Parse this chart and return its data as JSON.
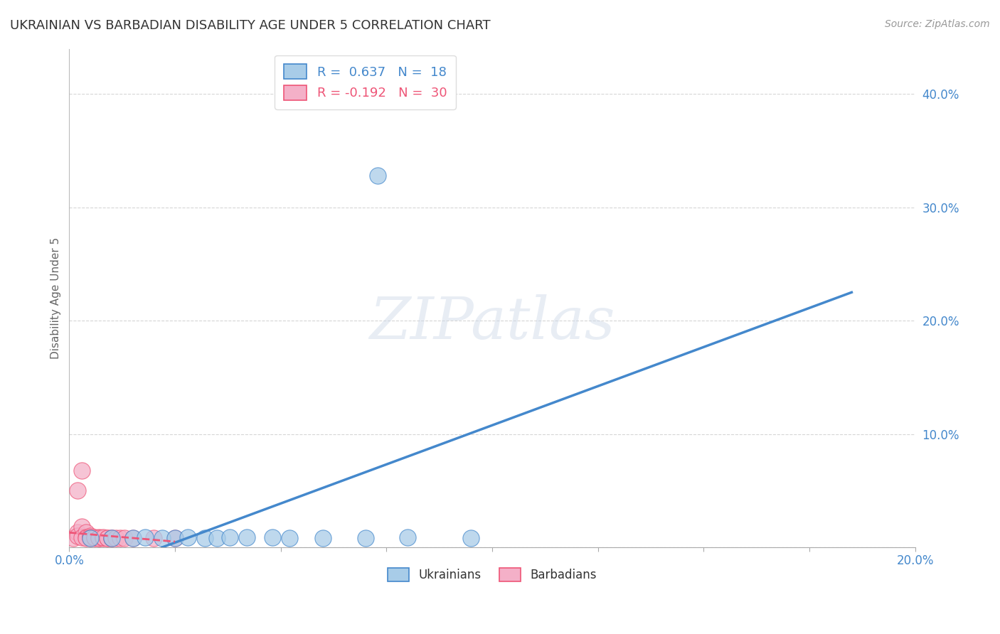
{
  "title": "UKRAINIAN VS BARBADIAN DISABILITY AGE UNDER 5 CORRELATION CHART",
  "source_text": "Source: ZipAtlas.com",
  "ylabel": "Disability Age Under 5",
  "xlabel": "",
  "xlim": [
    0.0,
    0.2
  ],
  "ylim": [
    0.0,
    0.44
  ],
  "background_color": "#ffffff",
  "watermark": "ZIPatlas",
  "legend_r_labels": [
    "R =  0.637   N =  18",
    "R = -0.192   N =  30"
  ],
  "legend_bottom_labels": [
    "Ukrainians",
    "Barbadians"
  ],
  "ukrainian_color": "#a8cce8",
  "barbadian_color": "#f4b0c8",
  "ukrainian_line_color": "#4488cc",
  "barbadian_line_color": "#ee5577",
  "grid_color": "#cccccc",
  "tick_label_color": "#4488cc",
  "ukrainian_points": [
    [
      0.005,
      0.008
    ],
    [
      0.01,
      0.008
    ],
    [
      0.015,
      0.008
    ],
    [
      0.018,
      0.009
    ],
    [
      0.022,
      0.008
    ],
    [
      0.025,
      0.008
    ],
    [
      0.028,
      0.009
    ],
    [
      0.032,
      0.008
    ],
    [
      0.035,
      0.008
    ],
    [
      0.038,
      0.009
    ],
    [
      0.042,
      0.009
    ],
    [
      0.048,
      0.009
    ],
    [
      0.052,
      0.008
    ],
    [
      0.06,
      0.008
    ],
    [
      0.07,
      0.008
    ],
    [
      0.08,
      0.009
    ],
    [
      0.095,
      0.008
    ],
    [
      0.073,
      0.328
    ]
  ],
  "barbadian_points": [
    [
      0.001,
      0.008
    ],
    [
      0.002,
      0.013
    ],
    [
      0.002,
      0.01
    ],
    [
      0.003,
      0.018
    ],
    [
      0.003,
      0.009
    ],
    [
      0.004,
      0.013
    ],
    [
      0.004,
      0.009
    ],
    [
      0.004,
      0.008
    ],
    [
      0.005,
      0.01
    ],
    [
      0.005,
      0.009
    ],
    [
      0.005,
      0.008
    ],
    [
      0.006,
      0.008
    ],
    [
      0.006,
      0.009
    ],
    [
      0.007,
      0.008
    ],
    [
      0.007,
      0.009
    ],
    [
      0.007,
      0.008
    ],
    [
      0.008,
      0.008
    ],
    [
      0.008,
      0.009
    ],
    [
      0.009,
      0.008
    ],
    [
      0.009,
      0.008
    ],
    [
      0.01,
      0.008
    ],
    [
      0.01,
      0.008
    ],
    [
      0.011,
      0.008
    ],
    [
      0.012,
      0.008
    ],
    [
      0.013,
      0.008
    ],
    [
      0.015,
      0.008
    ],
    [
      0.02,
      0.008
    ],
    [
      0.025,
      0.008
    ],
    [
      0.003,
      0.068
    ],
    [
      0.002,
      0.05
    ]
  ],
  "ukrainian_trend_x": [
    0.022,
    0.185
  ],
  "ukrainian_trend_y": [
    0.0,
    0.225
  ],
  "barbadian_trend_x": [
    0.0,
    0.025
  ],
  "barbadian_trend_y": [
    0.013,
    0.005
  ]
}
